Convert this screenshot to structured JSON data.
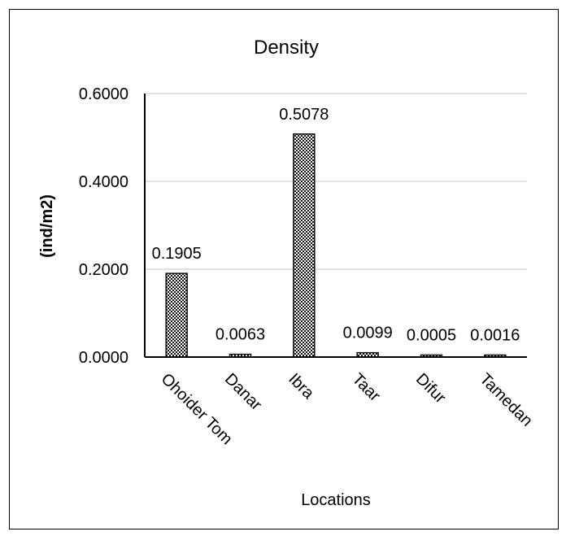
{
  "chart_data": {
    "type": "bar",
    "title": "Density",
    "xlabel": "Locations",
    "ylabel": "(ind/m2)",
    "categories": [
      "Ohoider Tom",
      "Danar",
      "Ibra",
      "Taar",
      "Difur",
      "Tamedan"
    ],
    "values": [
      0.1905,
      0.0063,
      0.5078,
      0.0099,
      0.0005,
      0.0016
    ],
    "data_labels": [
      "0.1905",
      "0.0063",
      "0.5078",
      "0.0099",
      "0.0005",
      "0.0016"
    ],
    "yticks": [
      0,
      0.2,
      0.4,
      0.6
    ],
    "ytick_labels": [
      "0.0000",
      "0.2000",
      "0.4000",
      "0.6000"
    ],
    "ylim": [
      0,
      0.6
    ],
    "grid": true,
    "bar_fill": "checkered",
    "colors": {
      "bar_dark": "#111111",
      "bar_light": "#ffffff",
      "grid": "#d9d9d9",
      "axis": "#000000"
    }
  }
}
